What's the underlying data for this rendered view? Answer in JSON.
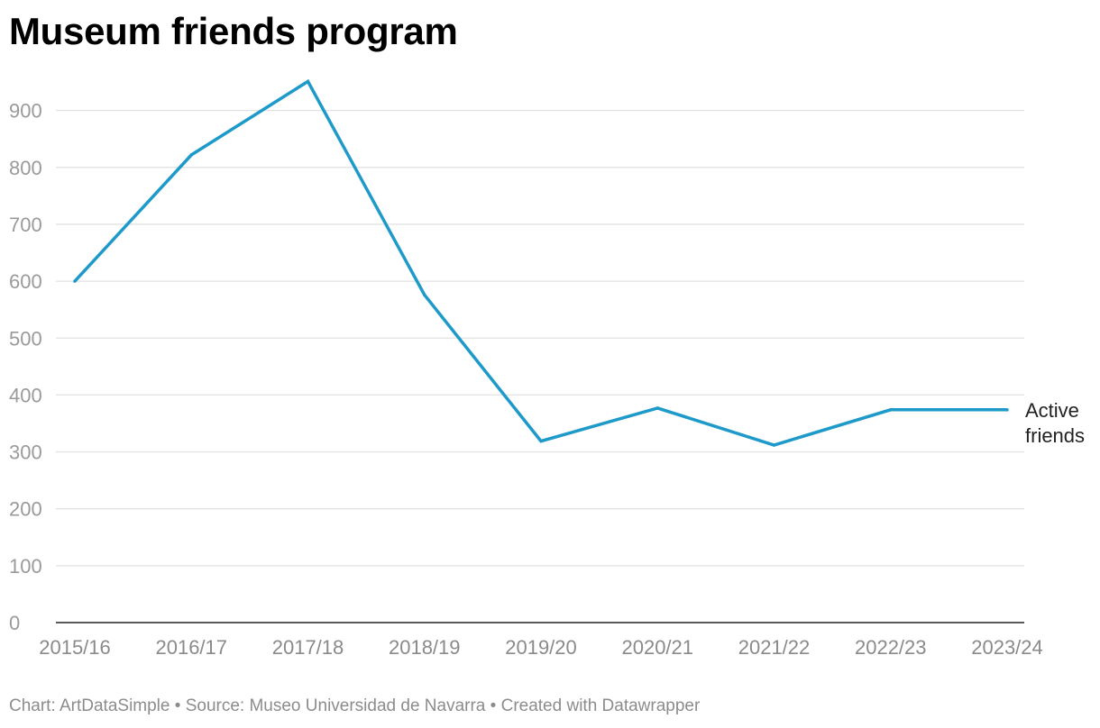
{
  "chart_data": {
    "type": "line",
    "title": "Museum friends program",
    "categories": [
      "2015/16",
      "2016/17",
      "2017/18",
      "2018/19",
      "2019/20",
      "2020/21",
      "2021/22",
      "2022/23",
      "2023/24"
    ],
    "series": [
      {
        "name": "Active friends",
        "color": "#1d9ac9",
        "values": [
          600,
          822,
          951,
          576,
          319,
          377,
          312,
          374,
          374
        ]
      }
    ],
    "xlabel": "",
    "ylabel": "",
    "ylim": [
      0,
      950
    ],
    "yticks": [
      0,
      100,
      200,
      300,
      400,
      500,
      600,
      700,
      800,
      900
    ],
    "grid": true,
    "legend": "direct label at right end of line"
  },
  "footer": {
    "chart_label": "Chart:",
    "chart_author": "ArtDataSimple",
    "separator_1": "•",
    "source_label": "Source:",
    "source_name": "Museo Universidad de Navarra",
    "separator_2": "•",
    "credit": "Created with Datawrapper"
  }
}
